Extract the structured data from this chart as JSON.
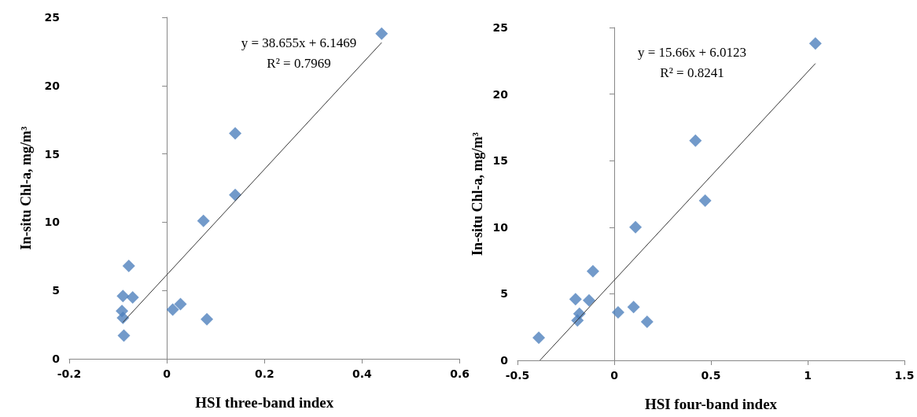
{
  "chart_data": [
    {
      "type": "scatter",
      "xlabel": "HSI three-band index",
      "ylabel": "In-situ Chl-a, mg/m³",
      "annotations": [
        "y = 38.655x + 6.1469",
        "R² = 0.7969"
      ],
      "xlim": [
        -0.2,
        0.6
      ],
      "xticks": [
        -0.2,
        0,
        0.2,
        0.4,
        0.6
      ],
      "ylim": [
        0,
        25
      ],
      "yticks": [
        0,
        5,
        10,
        15,
        20,
        25
      ],
      "series": [
        {
          "marker": "diamond",
          "color": "#4f81bd",
          "x": [
            0.44,
            0.14,
            0.14,
            0.075,
            -0.078,
            -0.09,
            -0.07,
            -0.092,
            -0.09,
            -0.088,
            0.012,
            0.028,
            0.082
          ],
          "values": [
            23.8,
            16.5,
            12.0,
            10.1,
            6.8,
            4.6,
            4.5,
            3.5,
            3.0,
            1.7,
            3.6,
            4.0,
            2.9
          ]
        },
        {
          "type": "line",
          "marker": "none",
          "color": "#333333",
          "x": [
            -0.09,
            0.44
          ],
          "values": [
            2.67,
            23.15
          ]
        }
      ]
    },
    {
      "type": "scatter",
      "xlabel": "HSI four-band index",
      "ylabel": "In-situ Chl-a, mg/m³",
      "annotations": [
        "y = 15.66x + 6.0123",
        "R² = 0.8241"
      ],
      "xlim": [
        -0.5,
        1.5
      ],
      "xticks": [
        -0.5,
        0,
        0.5,
        1,
        1.5
      ],
      "ylim": [
        0,
        25
      ],
      "yticks": [
        0,
        5,
        10,
        15,
        20,
        25
      ],
      "series": [
        {
          "marker": "diamond",
          "color": "#4f81bd",
          "x": [
            1.04,
            0.42,
            0.47,
            0.11,
            -0.11,
            -0.2,
            -0.13,
            -0.18,
            -0.19,
            -0.39,
            0.02,
            0.1,
            0.17
          ],
          "values": [
            23.8,
            16.5,
            12.0,
            10.0,
            6.7,
            4.6,
            4.5,
            3.5,
            3.0,
            1.7,
            3.6,
            4.0,
            2.9
          ]
        },
        {
          "type": "line",
          "marker": "none",
          "color": "#333333",
          "x": [
            -0.384,
            1.04
          ],
          "values": [
            0.0,
            22.3
          ]
        }
      ]
    }
  ]
}
